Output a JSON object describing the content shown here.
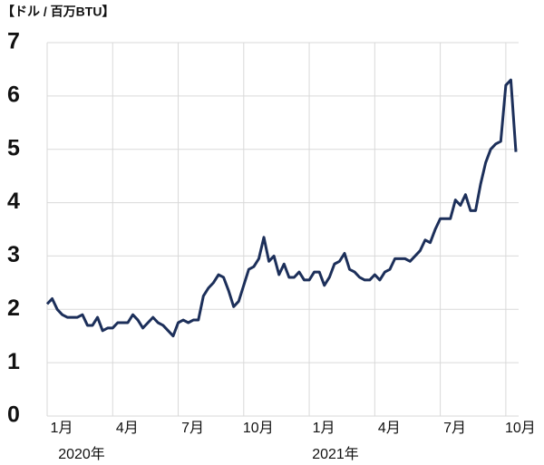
{
  "chart_data": {
    "type": "line",
    "unit_label": "【ドル / 百万BTU】",
    "year_labels": [
      "2020年",
      "2021年"
    ],
    "categories": [
      "1月",
      null,
      null,
      null,
      null,
      null,
      null,
      null,
      null,
      null,
      null,
      null,
      null,
      "4月",
      null,
      null,
      null,
      null,
      null,
      null,
      null,
      null,
      null,
      null,
      null,
      null,
      "7月",
      null,
      null,
      null,
      null,
      null,
      null,
      null,
      null,
      null,
      null,
      null,
      null,
      "10月",
      null,
      null,
      null,
      null,
      null,
      null,
      null,
      null,
      null,
      null,
      null,
      null,
      "1月",
      null,
      null,
      null,
      null,
      null,
      null,
      null,
      null,
      null,
      null,
      null,
      null,
      "4月",
      null,
      null,
      null,
      null,
      null,
      null,
      null,
      null,
      null,
      null,
      null,
      null,
      "7月",
      null,
      null,
      null,
      null,
      null,
      null,
      null,
      null,
      null,
      null,
      null,
      null,
      "10月",
      null,
      null
    ],
    "series": [
      {
        "color": "#1c2f5a",
        "values": [
          2.1,
          2.2,
          2.0,
          1.9,
          1.85,
          1.85,
          1.85,
          1.9,
          1.7,
          1.7,
          1.85,
          1.6,
          1.65,
          1.65,
          1.75,
          1.75,
          1.75,
          1.9,
          1.8,
          1.65,
          1.75,
          1.85,
          1.75,
          1.7,
          1.6,
          1.5,
          1.75,
          1.8,
          1.75,
          1.8,
          1.8,
          2.25,
          2.4,
          2.5,
          2.65,
          2.6,
          2.35,
          2.05,
          2.15,
          2.45,
          2.75,
          2.8,
          2.95,
          3.35,
          2.9,
          3.0,
          2.65,
          2.85,
          2.6,
          2.6,
          2.7,
          2.55,
          2.55,
          2.7,
          2.7,
          2.45,
          2.6,
          2.85,
          2.9,
          3.05,
          2.75,
          2.7,
          2.6,
          2.55,
          2.55,
          2.65,
          2.55,
          2.7,
          2.75,
          2.95,
          2.95,
          2.95,
          2.9,
          3.0,
          3.1,
          3.3,
          3.25,
          3.5,
          3.7,
          3.7,
          3.7,
          4.05,
          3.95,
          4.15,
          3.85,
          3.85,
          4.35,
          4.75,
          5.0,
          5.1,
          5.15,
          6.2,
          6.3,
          4.95
        ]
      }
    ],
    "ylim": [
      0,
      7
    ],
    "yticks": [
      0,
      1,
      2,
      3,
      4,
      5,
      6,
      7
    ],
    "grid": true
  }
}
